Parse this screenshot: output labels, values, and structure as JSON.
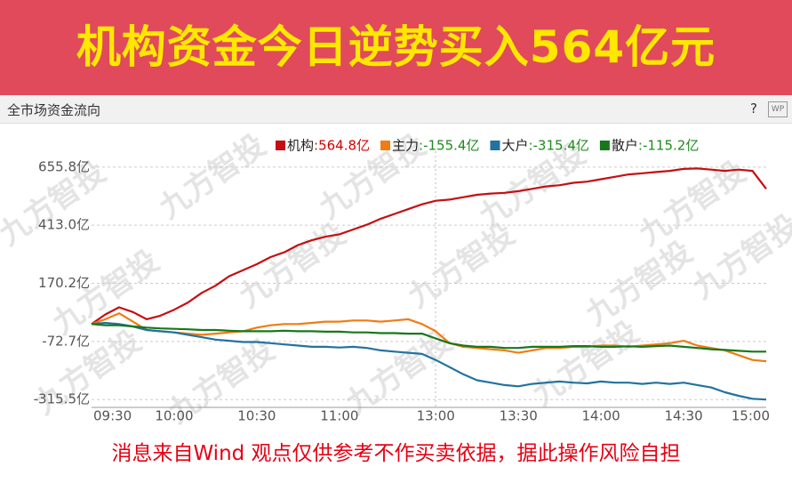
{
  "header": {
    "title": "机构资金今日逆势买入564亿元"
  },
  "panel": {
    "title": "全市场资金流向",
    "help": "?",
    "icon": "WP"
  },
  "watermark": "九方智投",
  "disclaimer": "消息来自Wind  观点仅供参考不作买卖依据，据此操作风险自担",
  "chart_data": {
    "type": "line",
    "categories": [
      "09:30",
      null,
      null,
      null,
      null,
      null,
      "10:00",
      null,
      null,
      null,
      null,
      null,
      "10:30",
      null,
      null,
      null,
      null,
      null,
      "11:00",
      null,
      null,
      null,
      null,
      null,
      null,
      "13:00",
      null,
      null,
      null,
      null,
      null,
      "13:30",
      null,
      null,
      null,
      null,
      null,
      "14:00",
      null,
      null,
      null,
      null,
      null,
      "14:30",
      null,
      null,
      null,
      null,
      null,
      "15:00"
    ],
    "ylim": [
      -337,
      722
    ],
    "yticks": [
      {
        "value": 655.8,
        "label": "655.8亿"
      },
      {
        "value": 413.0,
        "label": "413.0亿"
      },
      {
        "value": 170.2,
        "label": "170.2亿"
      },
      {
        "value": -72.7,
        "label": "-72.7亿"
      },
      {
        "value": -315.5,
        "label": "-315.5亿"
      }
    ],
    "grid": true,
    "legend": "top-right",
    "series": [
      {
        "name": "机构",
        "color": "#c40f12",
        "total": {
          "value": 564.8,
          "label": ":564.8亿"
        },
        "values": [
          0,
          40,
          70,
          50,
          20,
          35,
          60,
          90,
          130,
          160,
          200,
          225,
          250,
          280,
          300,
          330,
          350,
          365,
          375,
          395,
          415,
          440,
          460,
          480,
          500,
          515,
          520,
          530,
          540,
          545,
          548,
          555,
          565,
          575,
          580,
          590,
          595,
          605,
          615,
          625,
          630,
          635,
          640,
          648,
          650,
          645,
          640,
          645,
          640,
          564.8
        ]
      },
      {
        "name": "主力",
        "color": "#f07c14",
        "total": {
          "value": -155.4,
          "label": ":-155.4亿"
        },
        "values": [
          0,
          20,
          45,
          10,
          -25,
          -30,
          -35,
          -40,
          -45,
          -40,
          -35,
          -30,
          -15,
          -5,
          0,
          0,
          5,
          10,
          10,
          15,
          15,
          10,
          15,
          20,
          0,
          -30,
          -80,
          -95,
          -100,
          -105,
          -110,
          -120,
          -110,
          -100,
          -100,
          -95,
          -95,
          -90,
          -90,
          -95,
          -90,
          -85,
          -80,
          -70,
          -90,
          -100,
          -110,
          -130,
          -150,
          -155.4
        ]
      },
      {
        "name": "大户",
        "color": "#23729f",
        "total": {
          "value": -315.4,
          "label": ":-315.4亿"
        },
        "values": [
          0,
          5,
          0,
          -10,
          -25,
          -30,
          -35,
          -45,
          -55,
          -65,
          -70,
          -75,
          -75,
          -80,
          -85,
          -90,
          -95,
          -95,
          -98,
          -95,
          -100,
          -110,
          -115,
          -120,
          -125,
          -150,
          -180,
          -210,
          -235,
          -245,
          -255,
          -260,
          -250,
          -245,
          -240,
          -245,
          -248,
          -240,
          -245,
          -245,
          -250,
          -245,
          -250,
          -245,
          -255,
          -265,
          -285,
          -300,
          -312,
          -315.4
        ]
      },
      {
        "name": "散户",
        "color": "#17781a",
        "total": {
          "value": -115.2,
          "label": ":-115.2亿"
        },
        "values": [
          0,
          -5,
          -5,
          -10,
          -15,
          -18,
          -20,
          -22,
          -25,
          -25,
          -28,
          -30,
          -30,
          -30,
          -28,
          -30,
          -30,
          -32,
          -32,
          -35,
          -35,
          -38,
          -38,
          -40,
          -40,
          -60,
          -80,
          -90,
          -95,
          -95,
          -100,
          -100,
          -95,
          -95,
          -95,
          -92,
          -92,
          -95,
          -95,
          -93,
          -95,
          -92,
          -90,
          -95,
          -100,
          -105,
          -108,
          -112,
          -115,
          -115.2
        ]
      }
    ]
  }
}
